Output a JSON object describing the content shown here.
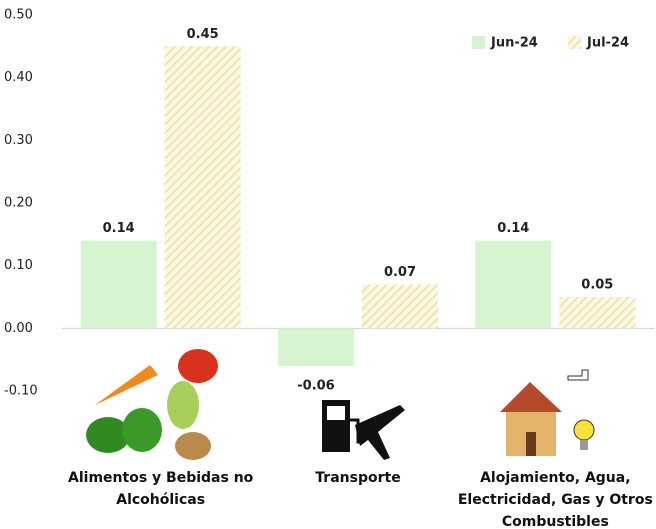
{
  "chart_data": {
    "type": "bar",
    "categories": [
      "Alimentos y Bebidas no Alcohólicas",
      "Transporte",
      "Alojamiento, Agua, Electricidad, Gas y Otros Combustibles"
    ],
    "series": [
      {
        "name": "Jun-24",
        "color": "#d5f4cf",
        "label_color": "#4e6b2a",
        "values": [
          0.14,
          -0.06,
          0.14
        ]
      },
      {
        "name": "Jul-24",
        "color": "#f3e9b8",
        "label_color": "#a8902e",
        "values": [
          0.45,
          0.07,
          0.05
        ]
      }
    ],
    "ylim": [
      -0.1,
      0.5
    ],
    "yticks": [
      {
        "value": -0.1,
        "label": "-0.10"
      },
      {
        "value": 0,
        "label": "0.00"
      },
      {
        "value": 0.1,
        "label": "0.10"
      },
      {
        "value": 0.2,
        "label": "0.20"
      },
      {
        "value": 0.3,
        "label": "0.30"
      },
      {
        "value": 0.4,
        "label": "0.40"
      },
      {
        "value": 0.5,
        "label": "0.50"
      }
    ],
    "legend": "top-right"
  }
}
